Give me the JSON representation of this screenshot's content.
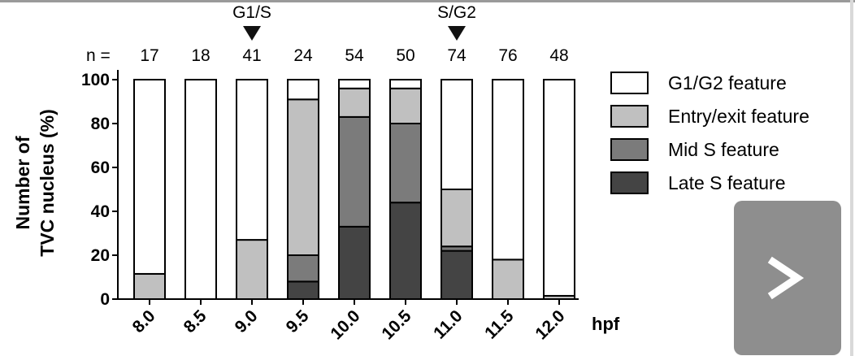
{
  "chart_data": {
    "type": "bar",
    "stacked": true,
    "categories": [
      "8.0",
      "8.5",
      "9.0",
      "9.5",
      "10.0",
      "10.5",
      "11.0",
      "11.5",
      "12.0"
    ],
    "n_label": "n =",
    "n_values": [
      "17",
      "18",
      "41",
      "24",
      "54",
      "50",
      "74",
      "76",
      "48"
    ],
    "xlabel": "hpf",
    "ylabel_lines": [
      "Number of",
      "TVC nucleus (%)"
    ],
    "ylim": [
      0,
      100
    ],
    "yticks": [
      "0",
      "20",
      "40",
      "60",
      "80",
      "100"
    ],
    "grid": false,
    "legend_placement": "right",
    "annotations": [
      {
        "label": "G1/S",
        "category": "9.0"
      },
      {
        "label": "S/G2",
        "category": "11.0"
      }
    ],
    "series": [
      {
        "name": "Late S feature",
        "color": "#444444",
        "values": [
          0,
          0,
          0,
          8,
          33,
          44,
          22,
          0,
          0
        ]
      },
      {
        "name": "Mid S feature",
        "color": "#7b7b7b",
        "values": [
          0,
          0,
          0,
          12,
          50,
          36,
          2,
          0,
          0
        ]
      },
      {
        "name": "Entry/exit feature",
        "color": "#c0c0c0",
        "values": [
          11.5,
          0,
          27,
          71,
          13,
          16,
          26,
          18,
          1.5
        ]
      },
      {
        "name": "G1/G2 feature",
        "color": "#ffffff",
        "values": [
          88.5,
          100,
          73,
          9,
          4,
          4,
          50,
          82,
          98.5
        ]
      }
    ],
    "legend_order": [
      "G1/G2 feature",
      "Entry/exit feature",
      "Mid S feature",
      "Late S feature"
    ]
  },
  "ui": {
    "next_icon": "chevron-right-icon",
    "next_button_color": "#8e8e8e"
  }
}
